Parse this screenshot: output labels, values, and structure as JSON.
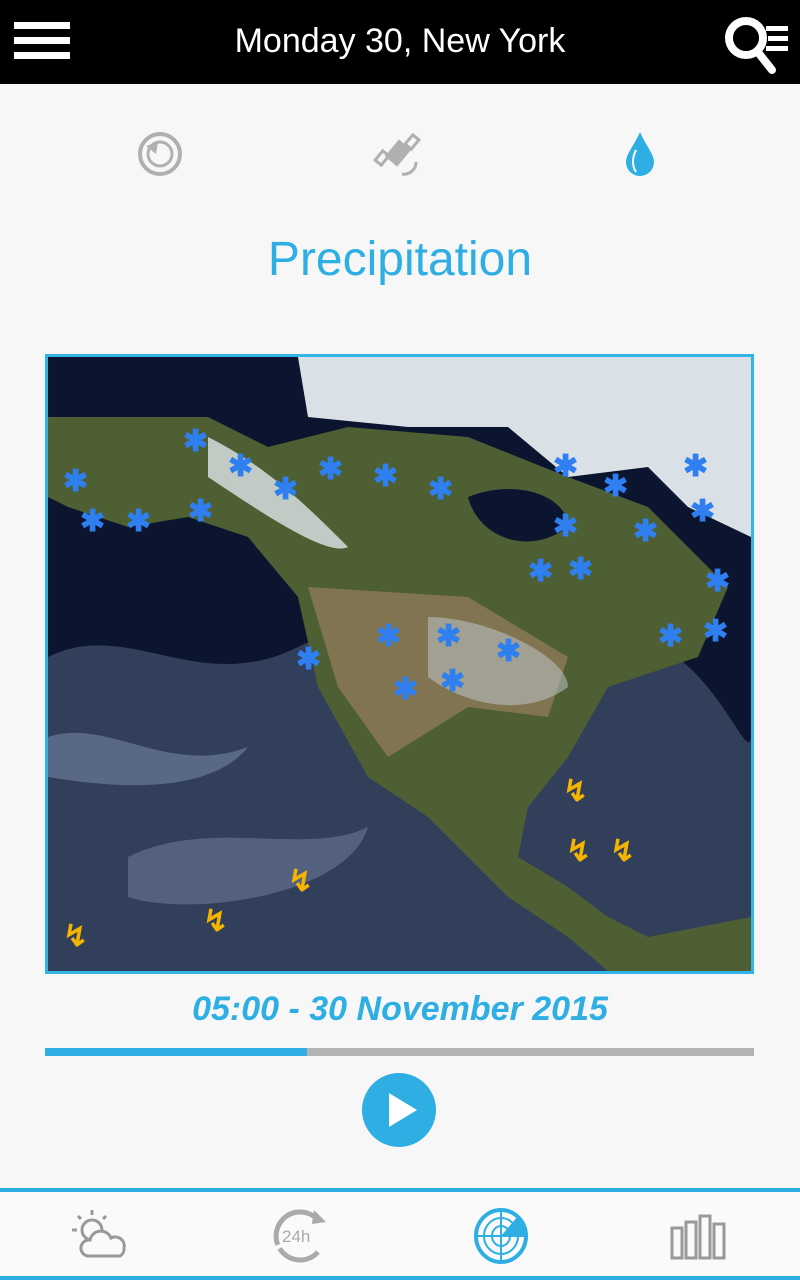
{
  "header": {
    "title": "Monday 30, New York",
    "menu_icon": "hamburger-menu-icon",
    "search_icon": "search-list-icon"
  },
  "sub_tabs": [
    {
      "name": "history",
      "icon": "history-icon",
      "active": false
    },
    {
      "name": "satellite",
      "icon": "satellite-icon",
      "active": false
    },
    {
      "name": "precipitation",
      "icon": "water-drop-icon",
      "active": true
    }
  ],
  "main": {
    "title": "Precipitation",
    "timestamp": "05:00 - 30 November 2015",
    "progress_percent": 37
  },
  "bottom_nav": [
    {
      "name": "forecast",
      "icon": "partly-cloudy-icon",
      "active": false
    },
    {
      "name": "24h",
      "icon": "24h-icon",
      "label": "24h",
      "active": false
    },
    {
      "name": "radar",
      "icon": "radar-icon",
      "active": true
    },
    {
      "name": "charts",
      "icon": "bar-chart-icon",
      "active": false
    }
  ],
  "colors": {
    "accent": "#2eaee3",
    "inactive": "#a8a8a8",
    "snow": "#2f7ff0",
    "storm": "#f4b400"
  }
}
